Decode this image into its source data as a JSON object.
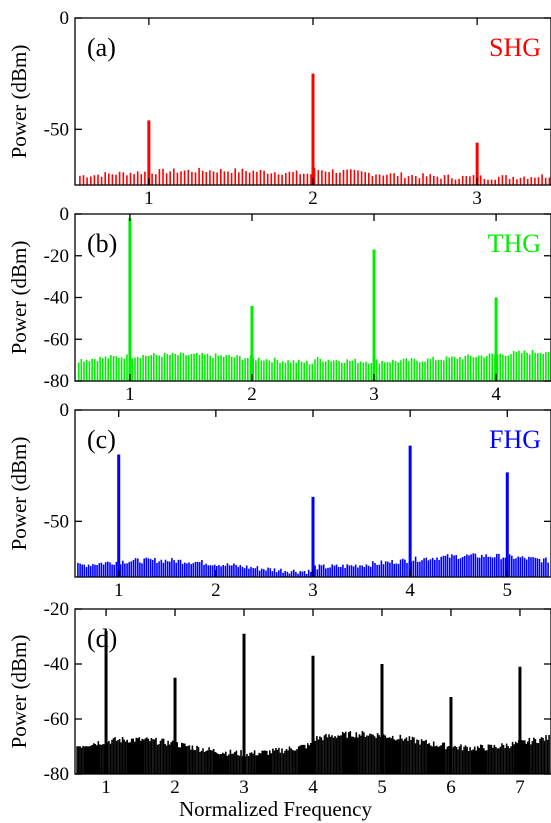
{
  "xlabel": "Normalized Frequency",
  "chart_data": [
    {
      "type": "bar",
      "panel_label": "(a)",
      "harmonic_label": "SHG",
      "color": "#ff0000",
      "ylabel": "Power (dBm)",
      "xlim": [
        0.55,
        3.45
      ],
      "ylim": [
        -75,
        0
      ],
      "xticks": [
        1,
        2,
        3
      ],
      "yticks": [
        0,
        -50
      ],
      "noise_floor": -71,
      "peaks": [
        {
          "x": 1,
          "y": -46
        },
        {
          "x": 2,
          "y": -25
        },
        {
          "x": 3,
          "y": -56
        }
      ]
    },
    {
      "type": "bar",
      "panel_label": "(b)",
      "harmonic_label": "THG",
      "color": "#00ee00",
      "ylabel": "Power (dBm)",
      "xlim": [
        0.55,
        4.45
      ],
      "ylim": [
        -80,
        0
      ],
      "xticks": [
        1,
        2,
        3,
        4
      ],
      "yticks": [
        0,
        -20,
        -40,
        -60,
        -80
      ],
      "noise_floor": -70,
      "peaks": [
        {
          "x": 1,
          "y": -2
        },
        {
          "x": 2,
          "y": -44
        },
        {
          "x": 3,
          "y": -17
        },
        {
          "x": 4,
          "y": -40
        }
      ]
    },
    {
      "type": "bar",
      "panel_label": "(c)",
      "harmonic_label": "FHG",
      "color": "#0000ff",
      "ylabel": "Power (dBm)",
      "xlim": [
        0.55,
        5.45
      ],
      "ylim": [
        -75,
        0
      ],
      "xticks": [
        1,
        2,
        3,
        4,
        5
      ],
      "yticks": [
        0,
        -50
      ],
      "noise_floor": -70,
      "peaks": [
        {
          "x": 1,
          "y": -20
        },
        {
          "x": 3,
          "y": -39
        },
        {
          "x": 4,
          "y": -16
        },
        {
          "x": 5,
          "y": -28
        }
      ]
    },
    {
      "type": "bar",
      "panel_label": "(d)",
      "harmonic_label": "",
      "color": "#000000",
      "ylabel": "Power (dBm)",
      "xlim": [
        0.55,
        7.45
      ],
      "ylim": [
        -80,
        -20
      ],
      "xticks": [
        1,
        2,
        3,
        4,
        5,
        6,
        7
      ],
      "yticks": [
        -20,
        -40,
        -60,
        -80
      ],
      "noise_floor": -70,
      "peaks": [
        {
          "x": 1,
          "y": -28
        },
        {
          "x": 2,
          "y": -45
        },
        {
          "x": 3,
          "y": -29
        },
        {
          "x": 4,
          "y": -37
        },
        {
          "x": 5,
          "y": -40
        },
        {
          "x": 6,
          "y": -52
        },
        {
          "x": 7,
          "y": -41
        }
      ]
    }
  ]
}
